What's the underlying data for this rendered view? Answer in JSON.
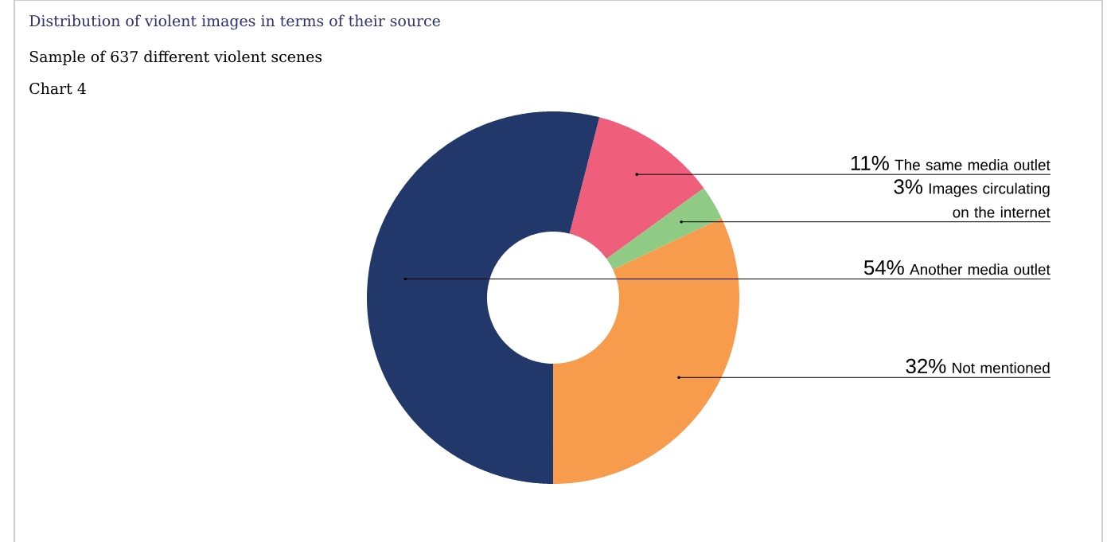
{
  "chart_data": {
    "type": "donut",
    "title": "Distribution of violent images in terms of their source",
    "subtitle": "Sample of 637 different violent scenes",
    "annotations": [
      "Chart 4"
    ],
    "categories": [
      "The same media outlet",
      "Images circulating on the internet",
      "Not mentioned",
      "Another media outlet"
    ],
    "values": [
      11,
      3,
      32,
      54
    ],
    "value_labels": [
      "11%",
      "3%",
      "32%",
      "54%"
    ],
    "colors": [
      "#ef5f7b",
      "#8fcb85",
      "#f79c4c",
      "#22386b"
    ]
  }
}
